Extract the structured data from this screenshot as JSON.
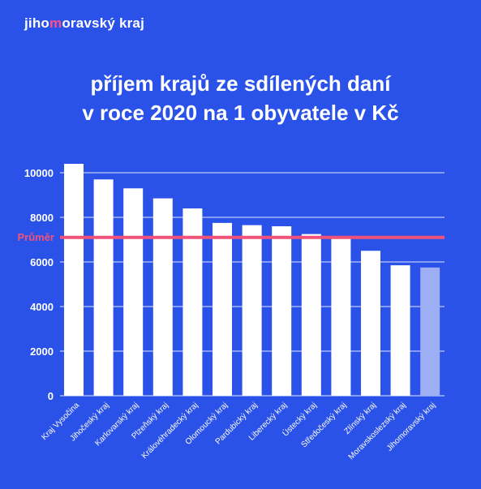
{
  "logo": {
    "text_before": "jiho",
    "text_accent": "m",
    "text_after": "oravský kraj"
  },
  "title_line1": "příjem krajů ze sdílených daní",
  "title_line2": "v roce 2020 na 1 obyvatele v Kč",
  "colors": {
    "background": "#2b52e8",
    "bar": "#ffffff",
    "bar_highlight": "#9eaef5",
    "average_line": "#f0527a",
    "accent": "#ff4f8b"
  },
  "chart_data": {
    "type": "bar",
    "title": "příjem krajů ze sdílených daní v roce 2020 na 1 obyvatele v Kč",
    "categories": [
      "Kraj Vysočina",
      "Jihočeský kraj",
      "Karlovarský kraj",
      "Plzeňský kraj",
      "Královéhradecký kraj",
      "Olomoucký kraj",
      "Pardubický kraj",
      "Liberecký kraj",
      "Ústecký kraj",
      "Středočeský kraj",
      "Zlínský kraj",
      "Moravskoslezský kraj",
      "Jihomoravský kraj"
    ],
    "values": [
      10400,
      9700,
      9300,
      8850,
      8400,
      7750,
      7650,
      7600,
      7250,
      7050,
      6500,
      5850,
      5750
    ],
    "highlight_index": 12,
    "average": {
      "label": "Průměr",
      "value": 7100
    },
    "yticks": [
      0,
      2000,
      4000,
      6000,
      8000,
      10000
    ],
    "ylim": [
      0,
      10400
    ],
    "grid": true
  }
}
